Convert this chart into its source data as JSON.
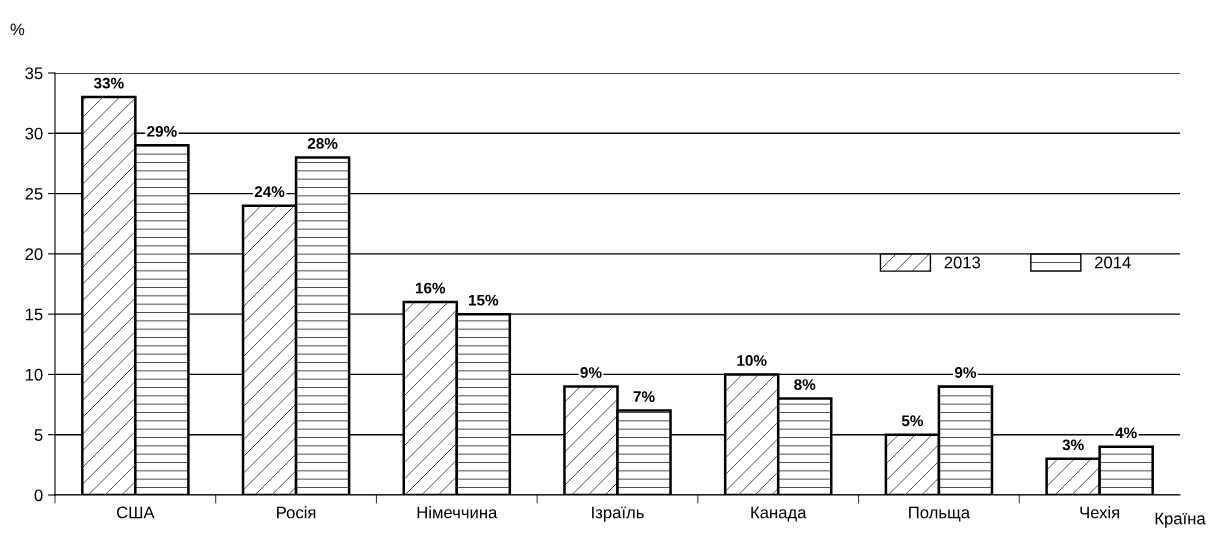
{
  "chart_data": {
    "type": "bar",
    "ylabel": "%",
    "xlabel": "Країна",
    "categories": [
      "США",
      "Росія",
      "Німеччина",
      "Ізраїль",
      "Канада",
      "Польща",
      "Чехія"
    ],
    "series": [
      {
        "name": "2013",
        "color": "#000000",
        "values": [
          33,
          24,
          16,
          9,
          10,
          5,
          3
        ],
        "value_labels": [
          "33%",
          "24%",
          "16%",
          "9%",
          "10%",
          "5%",
          "3%"
        ]
      },
      {
        "name": "2014",
        "color": "#000000",
        "values": [
          29,
          28,
          15,
          7,
          8,
          9,
          4
        ],
        "value_labels": [
          "29%",
          "28%",
          "15%",
          "7%",
          "8%",
          "9%",
          "4%"
        ]
      }
    ],
    "ylim": [
      0,
      35
    ],
    "yticks": [
      0,
      5,
      10,
      15,
      20,
      25,
      30,
      35
    ],
    "grid": "y",
    "legend": "right"
  }
}
